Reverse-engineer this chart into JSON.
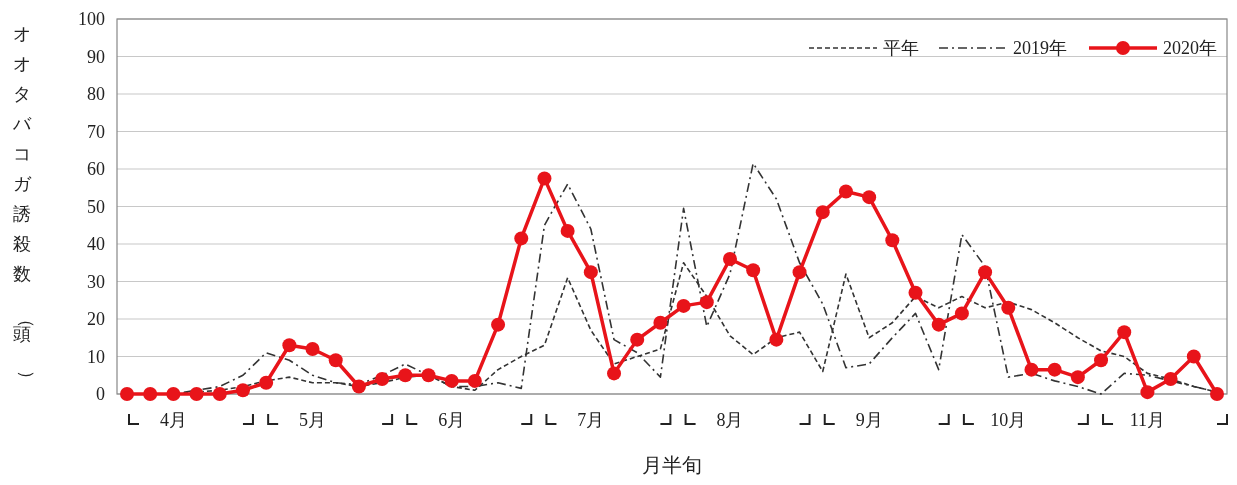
{
  "chart_data": {
    "type": "line",
    "xlabel": "月半旬",
    "ylabel": "オオタバコガ誘殺数（頭）",
    "categories": [
      null,
      null,
      "4月",
      null,
      null,
      null,
      null,
      null,
      "5月",
      null,
      null,
      null,
      null,
      null,
      "6月",
      null,
      null,
      null,
      null,
      null,
      "7月",
      null,
      null,
      null,
      null,
      null,
      "8月",
      null,
      null,
      null,
      null,
      null,
      "9月",
      null,
      null,
      null,
      null,
      null,
      "10月",
      null,
      null,
      null,
      null,
      null,
      "11月",
      null,
      null,
      null
    ],
    "ylim": [
      0,
      100
    ],
    "yticks": [
      0,
      10,
      20,
      30,
      40,
      50,
      60,
      70,
      80,
      90,
      100
    ],
    "grid": "y",
    "legend": "top right",
    "series": [
      {
        "name": "平年",
        "color": "#333333",
        "line_style": "dashed",
        "marker": "none",
        "values": [
          0,
          0,
          0,
          0.5,
          1,
          2,
          3.5,
          4.5,
          3,
          3,
          2,
          3,
          4.5,
          5,
          2,
          1,
          6.5,
          10,
          13,
          31,
          17,
          8,
          10,
          12,
          35,
          26,
          15.5,
          10.5,
          15,
          16.5,
          6,
          32,
          15,
          19,
          26,
          23,
          26,
          23,
          24.5,
          22.5,
          19,
          15,
          11.5,
          10,
          5.5,
          4,
          2,
          0.5
        ]
      },
      {
        "name": "2019年",
        "color": "#333333",
        "line_style": "dashdot",
        "marker": "none",
        "values": [
          0,
          0,
          0,
          1,
          2,
          5,
          11,
          9,
          5,
          3,
          2.5,
          5,
          8,
          5,
          2,
          2,
          3,
          1.5,
          45,
          56,
          44,
          14.5,
          11,
          4.5,
          49.5,
          18,
          32,
          61.5,
          52,
          35,
          24,
          7,
          8,
          15,
          21.5,
          6.5,
          42.5,
          34,
          4.5,
          5.5,
          3.5,
          2,
          0,
          5.5,
          5,
          3.5,
          2,
          0.5
        ]
      },
      {
        "name": "2020年",
        "color": "#e8141a",
        "line_style": "solid",
        "marker": "circle",
        "values": [
          0,
          0,
          0,
          0,
          0,
          1,
          3,
          13,
          12,
          9,
          2,
          4,
          5,
          5,
          3.5,
          3.5,
          18.5,
          41.5,
          57.5,
          43.5,
          32.5,
          5.5,
          14.5,
          19,
          23.5,
          24.5,
          36,
          33,
          14.5,
          32.5,
          48.5,
          54,
          52.5,
          41,
          27,
          18.5,
          21.5,
          32.5,
          23,
          6.5,
          6.5,
          4.5,
          9,
          16.5,
          0.5,
          4,
          10,
          0
        ]
      }
    ]
  }
}
